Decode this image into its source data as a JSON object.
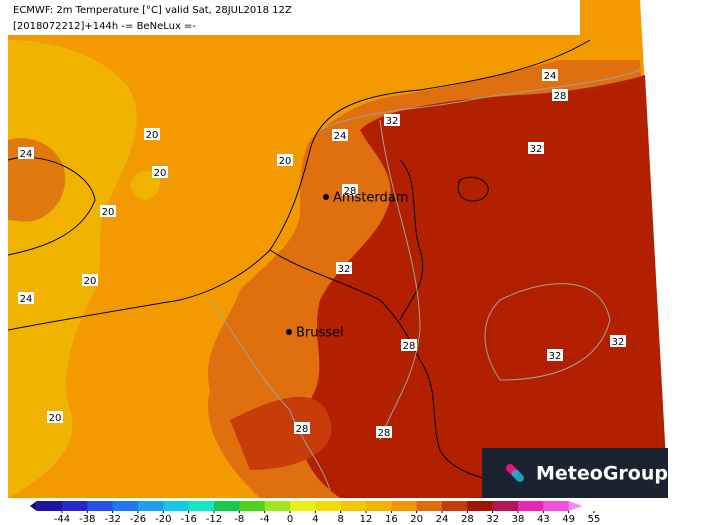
{
  "header": {
    "line1": "ECMWF: 2m Temperature [°C] valid Sat, 28JUL2018 12Z",
    "line2": "[2018072212]+144h -= BeNeLux =-"
  },
  "cities": [
    "Amsterdam",
    "Brussel"
  ],
  "contour_labels": [
    "24",
    "20",
    "20",
    "20",
    "20",
    "24",
    "28",
    "32",
    "24",
    "28",
    "32",
    "32",
    "20",
    "24",
    "28",
    "32",
    "32",
    "20",
    "28",
    "28"
  ],
  "colorbar": {
    "ticks": [
      -44,
      -38,
      -32,
      -26,
      -20,
      -16,
      -12,
      -8,
      -4,
      0,
      4,
      8,
      12,
      16,
      20,
      24,
      28,
      32,
      38,
      43,
      49,
      55
    ],
    "colors": [
      "#14006e",
      "#1e14a0",
      "#2828c8",
      "#2850e6",
      "#1e78f0",
      "#1ea0f0",
      "#14c8e6",
      "#14e6c8",
      "#14c850",
      "#50d21e",
      "#a0e61e",
      "#e6f014",
      "#f0dc00",
      "#f0c800",
      "#f0b400",
      "#f09600",
      "#e06a10",
      "#c83c0a",
      "#a01400",
      "#b4145a",
      "#e628b4",
      "#f050dc",
      "#f08cf0"
    ]
  },
  "logo": "MeteoGroup"
}
